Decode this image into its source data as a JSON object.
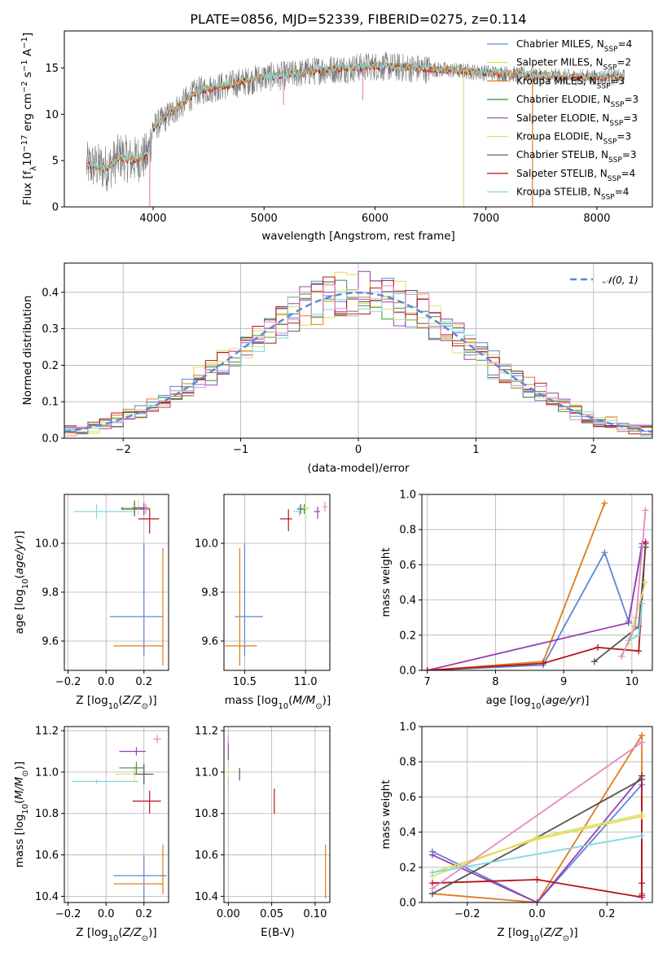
{
  "title": "PLATE=0856, MJD=52339, FIBERID=0275, z=0.114",
  "colors": {
    "chabrier_miles": "#5b86d6",
    "salpeter_miles": "#e8d84a",
    "kroupa_miles": "#e07b1c",
    "chabrier_elodie": "#3f8f3a",
    "salpeter_elodie": "#9b3fb0",
    "kroupa_elodie": "#d6e37a",
    "chabrier_stelib": "#555555",
    "salpeter_stelib": "#b8141a",
    "kroupa_stelib": "#7fd9dc",
    "pink": "#e58ac0",
    "gaussian": "#5b86d6"
  },
  "chart_data": [
    {
      "type": "line",
      "id": "spectrum",
      "title": "PLATE=0856, MJD=52339, FIBERID=0275, z=0.114",
      "xlabel": "wavelength [Angstrom, rest frame]",
      "ylabel": "Flux [f",
      "xlim": [
        3200,
        8500
      ],
      "ylim": [
        0,
        19
      ],
      "xticks": [
        4000,
        5000,
        6000,
        7000,
        8000
      ],
      "yticks": [
        0,
        5,
        10,
        15
      ],
      "data_range": [
        3400,
        8250
      ],
      "grid": false,
      "legend_position": "right",
      "legend": [
        {
          "name": "Chabrier MILES, N",
          "sub": "SSP",
          "tail": "=4",
          "color": "chabrier_miles"
        },
        {
          "name": "Salpeter MILES, N",
          "sub": "SSP",
          "tail": "=2",
          "color": "salpeter_miles"
        },
        {
          "name": "Kroupa MILES, N",
          "sub": "SSP",
          "tail": "=3",
          "color": "kroupa_miles"
        },
        {
          "name": "Chabrier ELODIE, N",
          "sub": "SSP",
          "tail": "=3",
          "color": "chabrier_elodie"
        },
        {
          "name": "Salpeter ELODIE, N",
          "sub": "SSP",
          "tail": "=3",
          "color": "salpeter_elodie"
        },
        {
          "name": "Kroupa ELODIE, N",
          "sub": "SSP",
          "tail": "=3",
          "color": "kroupa_elodie"
        },
        {
          "name": "Chabrier STELIB, N",
          "sub": "SSP",
          "tail": "=3",
          "color": "chabrier_stelib"
        },
        {
          "name": "Salpeter STELIB, N",
          "sub": "SSP",
          "tail": "=4",
          "color": "salpeter_stelib"
        },
        {
          "name": "Kroupa STELIB, N",
          "sub": "SSP",
          "tail": "=4",
          "color": "kroupa_stelib"
        }
      ],
      "continuum": [
        [
          3400,
          4.5
        ],
        [
          3600,
          4.2
        ],
        [
          3700,
          5.5
        ],
        [
          3800,
          5.0
        ],
        [
          3950,
          5.5
        ],
        [
          4000,
          8.5
        ],
        [
          4200,
          10.5
        ],
        [
          4400,
          12.5
        ],
        [
          4700,
          13.2
        ],
        [
          5000,
          14.0
        ],
        [
          5200,
          14.2
        ],
        [
          5500,
          14.8
        ],
        [
          5800,
          15.0
        ],
        [
          6000,
          15.2
        ],
        [
          6300,
          15.0
        ],
        [
          6600,
          14.8
        ],
        [
          7000,
          14.5
        ],
        [
          7400,
          14.2
        ],
        [
          7800,
          14.0
        ],
        [
          8250,
          14.0
        ]
      ],
      "spikes": [
        [
          3970,
          0
        ],
        [
          5175,
          11.0
        ],
        [
          5890,
          11.5
        ],
        [
          6800,
          0
        ],
        [
          7420,
          0
        ]
      ]
    },
    {
      "type": "bar",
      "id": "residual-histogram",
      "xlabel": "(data-model)/error",
      "ylabel": "Normed distribution",
      "xlim": [
        -2.5,
        2.5
      ],
      "ylim": [
        0,
        0.48
      ],
      "xticks": [
        -2,
        -1,
        0,
        1,
        2
      ],
      "yticks": [
        0.0,
        0.1,
        0.2,
        0.3,
        0.4
      ],
      "bin_width": 0.1,
      "grid": true,
      "legend_position": "top-right",
      "gaussian_label": "N(0,1)",
      "series_colors": [
        "chabrier_miles",
        "salpeter_miles",
        "kroupa_miles",
        "chabrier_elodie",
        "salpeter_elodie",
        "kroupa_elodie",
        "chabrier_stelib",
        "salpeter_stelib",
        "kroupa_stelib",
        "pink"
      ]
    },
    {
      "type": "scatter",
      "id": "age-vs-Z",
      "xlabel": "Z [log",
      "ylabel": "age  [log",
      "xlim": [
        -0.22,
        0.33
      ],
      "ylim": [
        9.48,
        10.2
      ],
      "xticks": [
        -0.2,
        0.0,
        0.2
      ],
      "yticks": [
        9.6,
        9.8,
        10.0
      ],
      "grid": true,
      "points": [
        {
          "x": 0.2,
          "y": 9.7,
          "xerr": [
            0.18,
            0.1
          ],
          "yerr": [
            0.16,
            0.3
          ],
          "color": "chabrier_miles"
        },
        {
          "x": 0.3,
          "y": 9.58,
          "xerr": [
            0.26,
            0.0
          ],
          "yerr": [
            0.08,
            0.4
          ],
          "color": "kroupa_miles"
        },
        {
          "x": -0.05,
          "y": 10.13,
          "xerr": [
            0.12,
            0.2
          ],
          "yerr": [
            0.03,
            0.03
          ],
          "color": "kroupa_stelib"
        },
        {
          "x": 0.15,
          "y": 10.14,
          "xerr": [
            0.07,
            0.08
          ],
          "yerr": [
            0.03,
            0.03
          ],
          "color": "chabrier_stelib"
        },
        {
          "x": 0.15,
          "y": 10.145,
          "xerr": [
            0.07,
            0.06
          ],
          "yerr": [
            0.03,
            0.03
          ],
          "color": "chabrier_elodie"
        },
        {
          "x": 0.17,
          "y": 10.145,
          "xerr": [
            0.08,
            0.07
          ],
          "yerr": [
            0.03,
            0.03
          ],
          "color": "kroupa_elodie"
        },
        {
          "x": 0.2,
          "y": 10.145,
          "xerr": [
            0.06,
            0.02
          ],
          "yerr": [
            0.03,
            0.02
          ],
          "color": "salpeter_elodie"
        },
        {
          "x": 0.23,
          "y": 10.1,
          "xerr": [
            0.06,
            0.05
          ],
          "yerr": [
            0.06,
            0.04
          ],
          "color": "salpeter_stelib"
        },
        {
          "x": 0.21,
          "y": 10.14,
          "xerr": [
            0.01,
            0.01
          ],
          "yerr": [
            0.02,
            0.02
          ],
          "color": "pink"
        }
      ]
    },
    {
      "type": "scatter",
      "id": "age-vs-mass",
      "xlabel": "mass [log",
      "ylabel": "",
      "xlim": [
        10.33,
        11.2
      ],
      "ylim": [
        9.48,
        10.2
      ],
      "xticks": [
        10.5,
        11.0
      ],
      "yticks": [
        9.6,
        9.8,
        10.0
      ],
      "grid": true,
      "points": [
        {
          "x": 10.5,
          "y": 9.7,
          "xerr": [
            0.08,
            0.15
          ],
          "yerr": [
            0.16,
            0.3
          ],
          "color": "chabrier_miles"
        },
        {
          "x": 10.46,
          "y": 9.58,
          "xerr": [
            0.12,
            0.14
          ],
          "yerr": [
            0.08,
            0.4
          ],
          "color": "kroupa_miles"
        },
        {
          "x": 10.86,
          "y": 10.1,
          "xerr": [
            0.07,
            0.03
          ],
          "yerr": [
            0.05,
            0.04
          ],
          "color": "salpeter_stelib"
        },
        {
          "x": 10.96,
          "y": 10.14,
          "xerr": [
            0.03,
            0.02
          ],
          "yerr": [
            0.02,
            0.02
          ],
          "color": "chabrier_stelib"
        },
        {
          "x": 10.99,
          "y": 10.14,
          "xerr": [
            0.03,
            0.02
          ],
          "yerr": [
            0.02,
            0.02
          ],
          "color": "chabrier_elodie"
        },
        {
          "x": 11.0,
          "y": 10.145,
          "xerr": [
            0.03,
            0.03
          ],
          "yerr": [
            0.02,
            0.02
          ],
          "color": "kroupa_elodie"
        },
        {
          "x": 11.1,
          "y": 10.13,
          "xerr": [
            0.03,
            0.02
          ],
          "yerr": [
            0.03,
            0.02
          ],
          "color": "salpeter_elodie"
        },
        {
          "x": 11.16,
          "y": 10.15,
          "xerr": [
            0.02,
            0.02
          ],
          "yerr": [
            0.02,
            0.02
          ],
          "color": "pink"
        },
        {
          "x": 10.95,
          "y": 10.13,
          "xerr": [
            0.05,
            0.01
          ],
          "yerr": [
            0.02,
            0.02
          ],
          "color": "kroupa_stelib"
        }
      ]
    },
    {
      "type": "line",
      "id": "mass-weight-vs-age",
      "xlabel": "age  [log",
      "ylabel": "mass weight",
      "xlim": [
        6.92,
        10.3
      ],
      "ylim": [
        0.0,
        1.0
      ],
      "xticks": [
        7,
        8,
        9,
        10
      ],
      "yticks": [
        0.0,
        0.2,
        0.4,
        0.6,
        0.8,
        1.0
      ],
      "grid": true,
      "series": [
        {
          "color": "kroupa_miles",
          "x": [
            7.0,
            8.7,
            9.6
          ],
          "y": [
            0.0,
            0.05,
            0.95
          ]
        },
        {
          "color": "chabrier_miles",
          "x": [
            7.0,
            8.7,
            9.6,
            9.95,
            10.15
          ],
          "y": [
            0.0,
            0.03,
            0.67,
            0.28,
            0.7
          ]
        },
        {
          "color": "salpeter_elodie",
          "x": [
            7.0,
            9.95,
            10.15,
            10.2
          ],
          "y": [
            0.0,
            0.27,
            0.72,
            0.73
          ]
        },
        {
          "color": "salpeter_stelib",
          "x": [
            7.0,
            8.7,
            9.5,
            10.1,
            10.2
          ],
          "y": [
            0.0,
            0.04,
            0.13,
            0.11,
            0.72
          ]
        },
        {
          "color": "chabrier_stelib",
          "x": [
            9.45,
            10.1,
            10.2
          ],
          "y": [
            0.05,
            0.25,
            0.7
          ]
        },
        {
          "color": "kroupa_elodie",
          "x": [
            9.95,
            10.05,
            10.2
          ],
          "y": [
            0.15,
            0.3,
            0.5
          ]
        },
        {
          "color": "kroupa_stelib",
          "x": [
            9.95,
            10.1,
            10.15
          ],
          "y": [
            0.17,
            0.2,
            0.38
          ]
        },
        {
          "color": "pink",
          "x": [
            9.85,
            10.05,
            10.2
          ],
          "y": [
            0.08,
            0.25,
            0.91
          ]
        }
      ]
    },
    {
      "type": "scatter",
      "id": "mass-vs-Z",
      "xlabel": "Z [log",
      "ylabel": "mass [log",
      "xlim": [
        -0.22,
        0.33
      ],
      "ylim": [
        10.37,
        11.22
      ],
      "xticks": [
        -0.2,
        0.0,
        0.2
      ],
      "yticks": [
        10.4,
        10.6,
        10.8,
        11.0,
        11.2
      ],
      "grid": true,
      "points": [
        {
          "x": 0.2,
          "y": 10.5,
          "xerr": [
            0.16,
            0.12
          ],
          "yerr": [
            0.15,
            0.1
          ],
          "color": "chabrier_miles"
        },
        {
          "x": 0.3,
          "y": 10.46,
          "xerr": [
            0.26,
            0.0
          ],
          "yerr": [
            0.05,
            0.19
          ],
          "color": "kroupa_miles"
        },
        {
          "x": 0.23,
          "y": 10.86,
          "xerr": [
            0.09,
            0.06
          ],
          "yerr": [
            0.06,
            0.05
          ],
          "color": "salpeter_stelib"
        },
        {
          "x": -0.05,
          "y": 10.955,
          "xerr": [
            0.13,
            0.22
          ],
          "yerr": [
            0.01,
            0.01
          ],
          "color": "kroupa_stelib"
        },
        {
          "x": 0.15,
          "y": 10.99,
          "xerr": [
            0.1,
            0.1
          ],
          "yerr": [
            0.04,
            0.04
          ],
          "color": "kroupa_elodie"
        },
        {
          "x": 0.16,
          "y": 11.02,
          "xerr": [
            0.09,
            0.04
          ],
          "yerr": [
            0.03,
            0.03
          ],
          "color": "chabrier_elodie"
        },
        {
          "x": 0.2,
          "y": 10.99,
          "xerr": [
            0.05,
            0.05
          ],
          "yerr": [
            0.05,
            0.05
          ],
          "color": "chabrier_stelib"
        },
        {
          "x": 0.16,
          "y": 11.1,
          "xerr": [
            0.09,
            0.05
          ],
          "yerr": [
            0.02,
            0.02
          ],
          "color": "salpeter_elodie"
        },
        {
          "x": 0.27,
          "y": 11.16,
          "xerr": [
            0.02,
            0.02
          ],
          "yerr": [
            0.02,
            0.02
          ],
          "color": "pink"
        }
      ]
    },
    {
      "type": "scatter",
      "id": "mass-vs-ebv",
      "xlabel": "E(B-V)",
      "ylabel": "",
      "xlim": [
        -0.005,
        0.117
      ],
      "ylim": [
        10.37,
        11.22
      ],
      "xticks": [
        0.0,
        0.05,
        0.1
      ],
      "yticks": [
        10.4,
        10.6,
        10.8,
        11.0,
        11.2
      ],
      "grid": true,
      "points": [
        {
          "x": 0.112,
          "y": 10.52,
          "yerr": [
            0.13,
            0.13
          ],
          "color": "kroupa_miles"
        },
        {
          "x": 0.053,
          "y": 10.86,
          "yerr": [
            0.06,
            0.06
          ],
          "color": "salpeter_stelib"
        },
        {
          "x": 0.013,
          "y": 10.99,
          "yerr": [
            0.03,
            0.03
          ],
          "color": "chabrier_stelib"
        },
        {
          "x": 0.0,
          "y": 10.99,
          "yerr": [
            0.03,
            0.03
          ],
          "color": "kroupa_elodie"
        },
        {
          "x": 0.0,
          "y": 11.1,
          "yerr": [
            0.04,
            0.04
          ],
          "color": "salpeter_elodie"
        },
        {
          "x": 0.0,
          "y": 11.16,
          "yerr": [
            0.02,
            0.02
          ],
          "color": "pink"
        },
        {
          "x": 0.0,
          "y": 10.95,
          "yerr": [
            0.02,
            0.02
          ],
          "color": "kroupa_stelib"
        }
      ]
    },
    {
      "type": "line",
      "id": "mass-weight-vs-Z",
      "xlabel": "Z [log",
      "ylabel": "mass weight",
      "xlim": [
        -0.33,
        0.33
      ],
      "ylim": [
        0.0,
        1.0
      ],
      "xticks": [
        -0.2,
        0.0,
        0.2
      ],
      "yticks": [
        0.0,
        0.2,
        0.4,
        0.6,
        0.8,
        1.0
      ],
      "grid": true,
      "series": [
        {
          "color": "kroupa_miles",
          "x": [
            -0.3,
            0.0,
            0.3,
            0.3
          ],
          "y": [
            0.05,
            0.0,
            0.95,
            0.05
          ]
        },
        {
          "color": "chabrier_miles",
          "x": [
            -0.3,
            0.0,
            0.3,
            0.3
          ],
          "y": [
            0.29,
            0.0,
            0.67,
            0.04
          ]
        },
        {
          "color": "salpeter_elodie",
          "x": [
            -0.3,
            0.0,
            0.3,
            0.3
          ],
          "y": [
            0.27,
            0.0,
            0.72,
            0.04
          ]
        },
        {
          "color": "salpeter_stelib",
          "x": [
            -0.3,
            0.0,
            0.3,
            0.3,
            0.3
          ],
          "y": [
            0.11,
            0.13,
            0.03,
            0.72,
            0.11
          ]
        },
        {
          "color": "chabrier_stelib",
          "x": [
            -0.3,
            0.0,
            0.3
          ],
          "y": [
            0.05,
            0.37,
            0.7
          ]
        },
        {
          "color": "kroupa_elodie",
          "x": [
            -0.3,
            0.0,
            0.3
          ],
          "y": [
            0.15,
            0.37,
            0.5
          ]
        },
        {
          "color": "salpeter_miles",
          "x": [
            -0.3,
            0.0,
            0.3
          ],
          "y": [
            0.17,
            0.36,
            0.49
          ]
        },
        {
          "color": "kroupa_stelib",
          "x": [
            -0.3,
            0.3
          ],
          "y": [
            0.17,
            0.38
          ]
        },
        {
          "color": "pink",
          "x": [
            -0.3,
            0.3
          ],
          "y": [
            0.08,
            0.91
          ]
        }
      ]
    }
  ]
}
